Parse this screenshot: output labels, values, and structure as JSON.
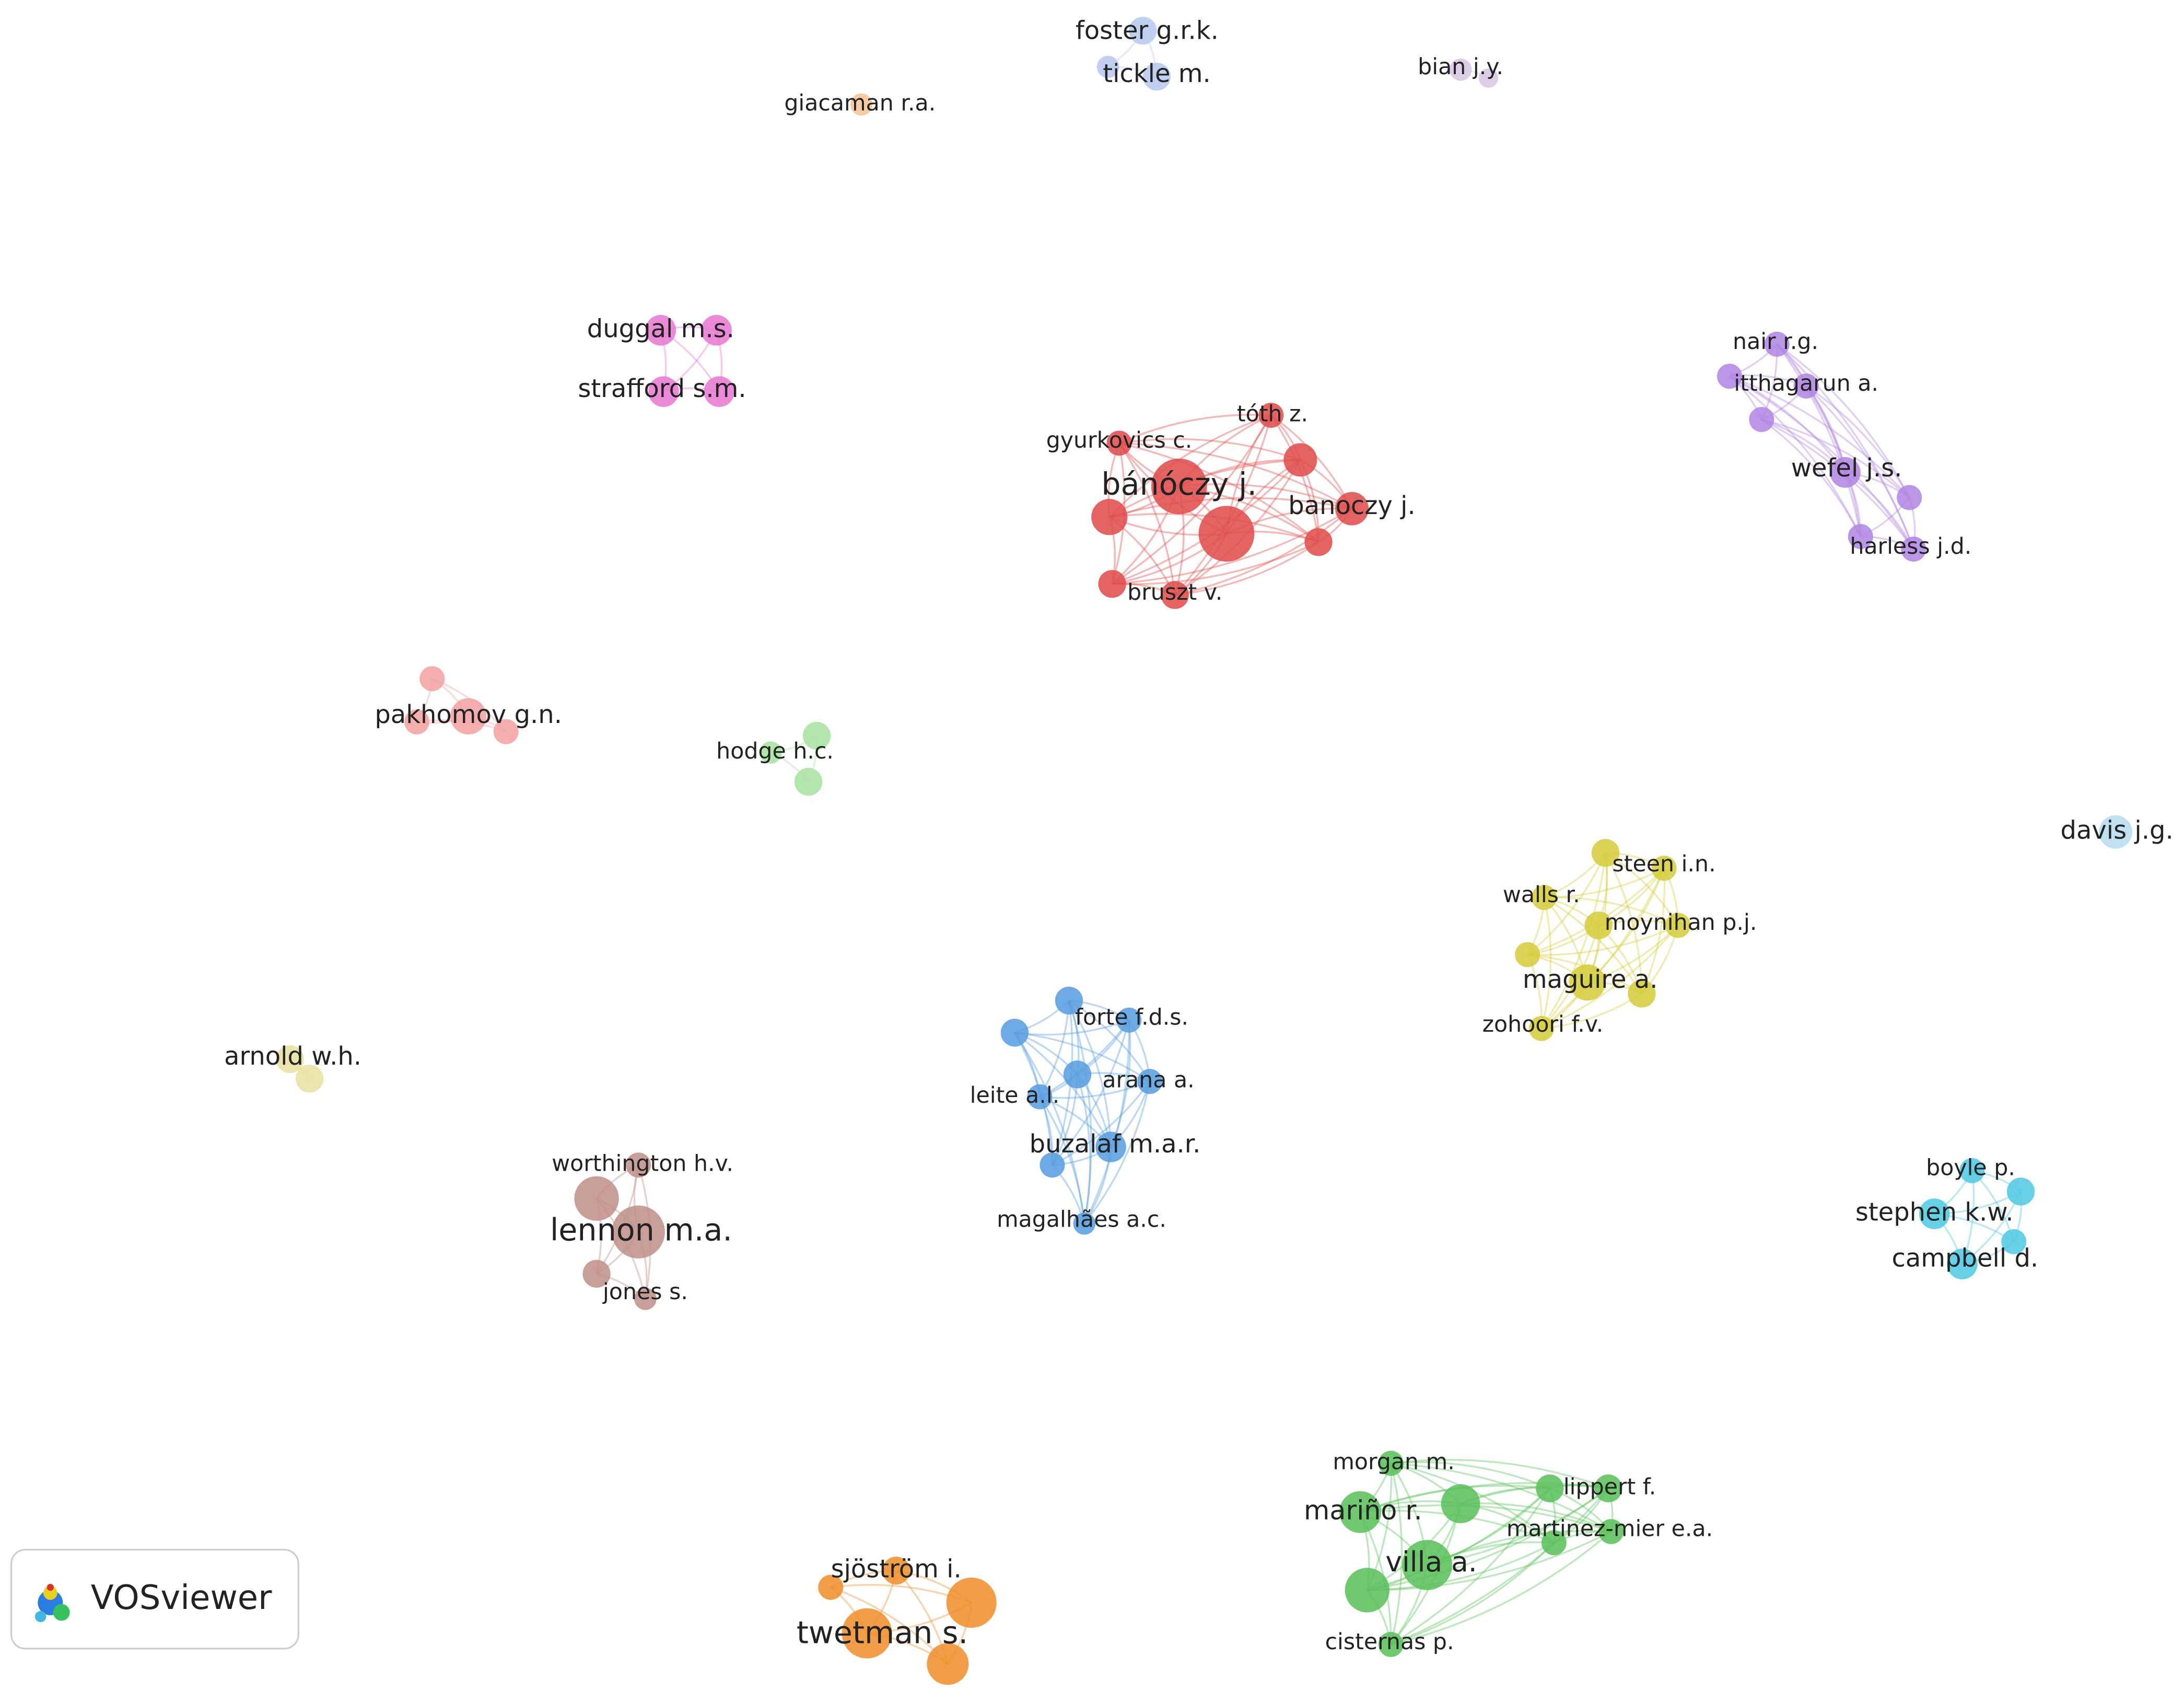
{
  "clusters": [
    {
      "color": "#b8c9ee",
      "labels": [
        "foster g.r.k.",
        "tickle m."
      ]
    },
    {
      "color": "#d8c6e2",
      "labels": [
        "bian j.y."
      ]
    },
    {
      "color": "#f5c49a",
      "labels": [
        "giacaman r.a."
      ]
    },
    {
      "color": "#e87ad2",
      "labels": [
        "duggal m.s.",
        "strafford s.m."
      ]
    },
    {
      "color": "#e04f4f",
      "labels": [
        "gyurkovics c.",
        "tóth z.",
        "bánóczy j.",
        "banoczy j.",
        "bruszt v."
      ]
    },
    {
      "color": "#b286e2",
      "labels": [
        "nair r.g.",
        "itthagarun a.",
        "wefel j.s.",
        "harless j.d."
      ]
    },
    {
      "color": "#f2a3a3",
      "labels": [
        "pakhomov g.n."
      ]
    },
    {
      "color": "#a8e2a0",
      "labels": [
        "hodge h.c."
      ]
    },
    {
      "color": "#b8dcf0",
      "labels": [
        "davis j.g."
      ]
    },
    {
      "color": "#d6cd3e",
      "labels": [
        "steen i.n.",
        "walls r.",
        "moynihan p.j.",
        "maguire a.",
        "zohoori f.v."
      ]
    },
    {
      "color": "#e8e0a2",
      "labels": [
        "arnold w.h."
      ]
    },
    {
      "color": "#5a9ee0",
      "labels": [
        "forte f.d.s.",
        "arana a.",
        "leite a.l.",
        "buzalaf m.a.r.",
        "magalhães a.c."
      ]
    },
    {
      "color": "#c0918a",
      "labels": [
        "worthington h.v.",
        "lennon m.a.",
        "jones s."
      ]
    },
    {
      "color": "#52c9e2",
      "labels": [
        "boyle p.",
        "stephen k.w.",
        "campbell d."
      ]
    },
    {
      "color": "#5cc25c",
      "labels": [
        "morgan m.",
        "mariño r.",
        "lippert f.",
        "villa a.",
        "martinez-mier e.a.",
        "cisternas p."
      ]
    },
    {
      "color": "#f0902e",
      "labels": [
        "sjöström i.",
        "twetman s."
      ]
    }
  ],
  "logo": "VOSviewer"
}
